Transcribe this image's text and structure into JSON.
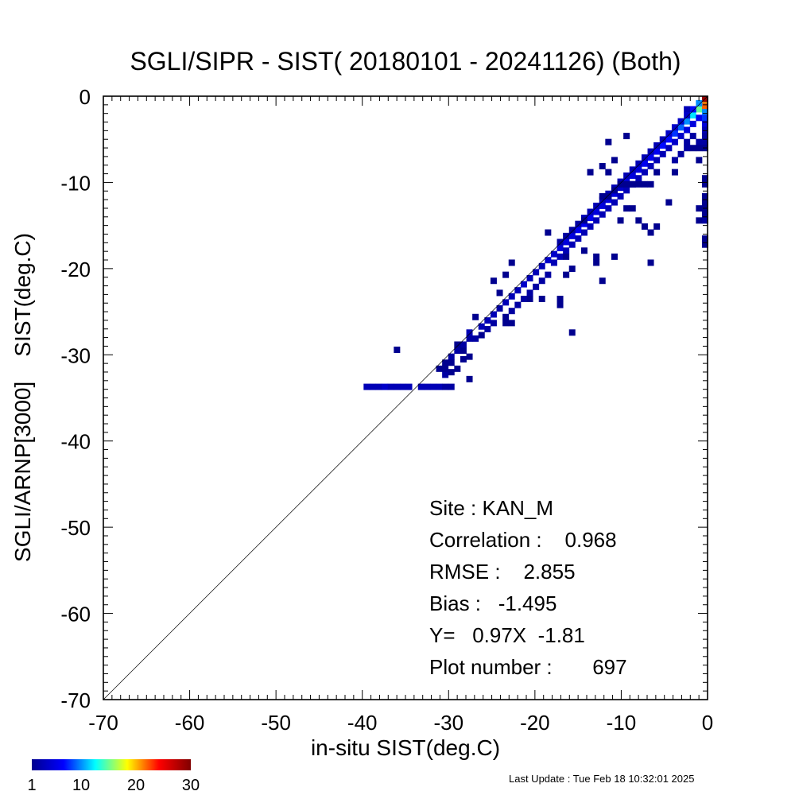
{
  "chart_data": {
    "type": "heatmap",
    "title": "SGLI/SIPR - SIST( 20180101 - 20241126) (Both)",
    "xlabel": "in-situ SIST(deg.C)",
    "ylabel": "SGLI/ARNP[3000]    SIST(deg.C)",
    "xlim": [
      -70,
      0
    ],
    "ylim": [
      -70,
      0
    ],
    "x_ticks": [
      -70,
      -60,
      -50,
      -40,
      -30,
      -20,
      -10,
      0
    ],
    "y_ticks": [
      0,
      -10,
      -20,
      -30,
      -40,
      -50,
      -60,
      -70
    ],
    "x_tick_labels": [
      "-70",
      "-60",
      "-50",
      "-40",
      "-30",
      "-20",
      "-10",
      "0"
    ],
    "y_tick_labels": [
      "0",
      "-10",
      "-20",
      "-30",
      "-40",
      "-50",
      "-60",
      "-70"
    ],
    "reference_line": "y = x",
    "grid": false,
    "bin_size": 0.7,
    "colorbar": {
      "min": 1,
      "max": 30,
      "ticks": [
        "1",
        "10",
        "20",
        "30"
      ],
      "colors": [
        "#00008f",
        "#0000ff",
        "#00ffff",
        "#ffff00",
        "#ff0000",
        "#800000"
      ]
    },
    "cells": [
      [
        -39.5,
        -33.7,
        3
      ],
      [
        -38.8,
        -33.7,
        3
      ],
      [
        -38.1,
        -33.7,
        3
      ],
      [
        -37.4,
        -33.7,
        4
      ],
      [
        -36.7,
        -33.7,
        3
      ],
      [
        -36.0,
        -33.7,
        3
      ],
      [
        -35.3,
        -33.7,
        3
      ],
      [
        -34.6,
        -33.7,
        3
      ],
      [
        -33.2,
        -33.7,
        3
      ],
      [
        -32.5,
        -33.7,
        3
      ],
      [
        -31.8,
        -33.7,
        3
      ],
      [
        -31.1,
        -33.7,
        3
      ],
      [
        -30.4,
        -33.7,
        2
      ],
      [
        -29.7,
        -33.7,
        2
      ],
      [
        -36.0,
        -29.4,
        1
      ],
      [
        -31.1,
        -31.6,
        1
      ],
      [
        -30.4,
        -32.3,
        2
      ],
      [
        -29.7,
        -32.0,
        1
      ],
      [
        -30.4,
        -30.9,
        1
      ],
      [
        -29.0,
        -31.6,
        1
      ],
      [
        -28.3,
        -30.5,
        1
      ],
      [
        -27.6,
        -32.8,
        1
      ],
      [
        -29.7,
        -30.2,
        2
      ],
      [
        -29.0,
        -29.5,
        2
      ],
      [
        -28.3,
        -28.8,
        2
      ],
      [
        -27.6,
        -28.1,
        2
      ],
      [
        -27.6,
        -27.4,
        3
      ],
      [
        -26.9,
        -28.1,
        2
      ],
      [
        -26.2,
        -26.7,
        3
      ],
      [
        -25.5,
        -26.0,
        3
      ],
      [
        -24.8,
        -25.3,
        3
      ],
      [
        -24.1,
        -24.6,
        2
      ],
      [
        -23.4,
        -23.9,
        3
      ],
      [
        -22.7,
        -23.2,
        3
      ],
      [
        -22.0,
        -22.5,
        3
      ],
      [
        -21.3,
        -21.8,
        4
      ],
      [
        -20.6,
        -21.1,
        3
      ],
      [
        -19.9,
        -20.4,
        3
      ],
      [
        -19.2,
        -19.7,
        3
      ],
      [
        -18.5,
        -19.0,
        4
      ],
      [
        -17.8,
        -18.3,
        4
      ],
      [
        -17.1,
        -17.6,
        5
      ],
      [
        -16.4,
        -16.9,
        5
      ],
      [
        -15.7,
        -16.2,
        5
      ],
      [
        -15.0,
        -15.5,
        6
      ],
      [
        -14.3,
        -14.8,
        6
      ],
      [
        -13.6,
        -14.1,
        6
      ],
      [
        -12.9,
        -13.4,
        5
      ],
      [
        -12.2,
        -12.7,
        5
      ],
      [
        -11.5,
        -12.0,
        5
      ],
      [
        -10.8,
        -11.3,
        5
      ],
      [
        -10.1,
        -10.6,
        4
      ],
      [
        -9.4,
        -9.9,
        5
      ],
      [
        -8.7,
        -9.2,
        5
      ],
      [
        -8.0,
        -8.5,
        5
      ],
      [
        -7.3,
        -7.8,
        6
      ],
      [
        -6.6,
        -7.1,
        6
      ],
      [
        -5.9,
        -6.4,
        6
      ],
      [
        -5.2,
        -5.7,
        7
      ],
      [
        -4.5,
        -5.0,
        7
      ],
      [
        -3.8,
        -4.3,
        8
      ],
      [
        -3.1,
        -3.6,
        9
      ],
      [
        -2.4,
        -2.9,
        10
      ],
      [
        -1.7,
        -2.2,
        12
      ],
      [
        -1.0,
        -1.5,
        15
      ],
      [
        -0.3,
        -0.8,
        18
      ],
      [
        -26.2,
        -27.7,
        1
      ],
      [
        -25.5,
        -27.0,
        2
      ],
      [
        -24.8,
        -26.3,
        2
      ],
      [
        -23.4,
        -25.6,
        1
      ],
      [
        -22.7,
        -24.9,
        2
      ],
      [
        -22.0,
        -24.2,
        2
      ],
      [
        -21.3,
        -23.5,
        2
      ],
      [
        -20.6,
        -22.8,
        2
      ],
      [
        -19.9,
        -22.1,
        2
      ],
      [
        -19.2,
        -21.4,
        2
      ],
      [
        -18.5,
        -20.7,
        2
      ],
      [
        -17.8,
        -19.3,
        3
      ],
      [
        -17.1,
        -18.6,
        3
      ],
      [
        -16.4,
        -17.9,
        3
      ],
      [
        -15.7,
        -17.2,
        3
      ],
      [
        -15.0,
        -16.5,
        3
      ],
      [
        -14.3,
        -15.8,
        3
      ],
      [
        -13.6,
        -15.1,
        3
      ],
      [
        -12.9,
        -14.4,
        3
      ],
      [
        -12.2,
        -13.7,
        3
      ],
      [
        -11.5,
        -13.0,
        3
      ],
      [
        -10.8,
        -12.3,
        3
      ],
      [
        -10.1,
        -11.6,
        3
      ],
      [
        -9.4,
        -10.9,
        3
      ],
      [
        -8.7,
        -10.2,
        3
      ],
      [
        -8.0,
        -9.5,
        3
      ],
      [
        -7.3,
        -8.8,
        3
      ],
      [
        -6.6,
        -8.1,
        3
      ],
      [
        -5.9,
        -7.4,
        3
      ],
      [
        -5.2,
        -6.7,
        3
      ],
      [
        -4.5,
        -6.0,
        3
      ],
      [
        -3.8,
        -5.3,
        4
      ],
      [
        -3.1,
        -4.6,
        4
      ],
      [
        -2.4,
        -3.9,
        5
      ],
      [
        -1.7,
        -3.2,
        5
      ],
      [
        -1.0,
        -2.5,
        6
      ],
      [
        -0.3,
        -1.8,
        10
      ],
      [
        -0.3,
        -0.3,
        29
      ],
      [
        -0.3,
        -1.1,
        22
      ],
      [
        -1.0,
        -0.8,
        10
      ],
      [
        -1.7,
        -1.5,
        7
      ],
      [
        -2.4,
        -1.5,
        3
      ],
      [
        -2.4,
        -2.2,
        4
      ],
      [
        -3.1,
        -2.9,
        4
      ],
      [
        -3.8,
        -3.6,
        4
      ],
      [
        -4.5,
        -4.3,
        4
      ],
      [
        -5.2,
        -5.0,
        3
      ],
      [
        -5.9,
        -5.7,
        3
      ],
      [
        -6.6,
        -6.4,
        3
      ],
      [
        -7.3,
        -7.1,
        3
      ],
      [
        -8.0,
        -7.8,
        3
      ],
      [
        -8.7,
        -8.5,
        3
      ],
      [
        -9.4,
        -9.2,
        3
      ],
      [
        -10.1,
        -9.9,
        3
      ],
      [
        -10.8,
        -10.6,
        3
      ],
      [
        -11.5,
        -11.3,
        3
      ],
      [
        -12.2,
        -12.0,
        3
      ],
      [
        -12.9,
        -12.7,
        3
      ],
      [
        -13.6,
        -13.4,
        3
      ],
      [
        -14.3,
        -14.1,
        3
      ],
      [
        -15.0,
        -14.8,
        2
      ],
      [
        -15.7,
        -15.5,
        2
      ],
      [
        -16.4,
        -16.2,
        2
      ],
      [
        -17.1,
        -16.9,
        2
      ],
      [
        -0.3,
        -2.5,
        8
      ],
      [
        -0.3,
        -3.2,
        5
      ],
      [
        -0.3,
        -3.9,
        3
      ],
      [
        -0.3,
        -4.6,
        2
      ],
      [
        -0.3,
        -5.3,
        2
      ],
      [
        -0.3,
        -6.0,
        1
      ],
      [
        -1.0,
        -5.3,
        2
      ],
      [
        -1.0,
        -6.0,
        1
      ],
      [
        -1.7,
        -4.6,
        2
      ],
      [
        -1.7,
        -6.0,
        1
      ],
      [
        -2.4,
        -5.3,
        2
      ],
      [
        -2.4,
        -6.0,
        2
      ],
      [
        -3.1,
        -6.7,
        2
      ],
      [
        -3.8,
        -7.4,
        2
      ],
      [
        -0.3,
        -9.5,
        1
      ],
      [
        -0.3,
        -10.2,
        1
      ],
      [
        -0.3,
        -11.6,
        1
      ],
      [
        -0.3,
        -12.3,
        1
      ],
      [
        -0.3,
        -13.0,
        1
      ],
      [
        -0.3,
        -13.7,
        1
      ],
      [
        -0.3,
        -14.4,
        2
      ],
      [
        -1.0,
        -14.4,
        1
      ],
      [
        -0.3,
        -16.5,
        1
      ],
      [
        -0.3,
        -17.2,
        1
      ],
      [
        -1.0,
        -13.0,
        1
      ],
      [
        -1.0,
        -7.4,
        1
      ],
      [
        -3.8,
        -8.8,
        1
      ],
      [
        -5.9,
        -8.8,
        1
      ],
      [
        -6.6,
        -10.2,
        1
      ],
      [
        -7.3,
        -10.2,
        1
      ],
      [
        -8.0,
        -10.2,
        1
      ],
      [
        -8.7,
        -10.2,
        1
      ],
      [
        -9.4,
        -10.2,
        1
      ],
      [
        -10.1,
        -10.2,
        1
      ],
      [
        -10.8,
        -10.9,
        1
      ],
      [
        -11.5,
        -11.6,
        1
      ],
      [
        -12.2,
        -11.6,
        1
      ],
      [
        -9.4,
        -13.0,
        1
      ],
      [
        -8.7,
        -13.0,
        1
      ],
      [
        -8.0,
        -14.4,
        1
      ],
      [
        -7.3,
        -15.1,
        1
      ],
      [
        -6.6,
        -15.8,
        1
      ],
      [
        -5.9,
        -15.1,
        1
      ],
      [
        -10.1,
        -14.4,
        1
      ],
      [
        -4.5,
        -12.3,
        1
      ],
      [
        -9.4,
        -4.6,
        1
      ],
      [
        -11.5,
        -5.3,
        1
      ],
      [
        -12.2,
        -8.1,
        1
      ],
      [
        -13.6,
        -8.8,
        1
      ],
      [
        -11.5,
        -8.8,
        1
      ],
      [
        -10.8,
        -7.4,
        1
      ],
      [
        -14.3,
        -14.4,
        1
      ],
      [
        -16.4,
        -18.6,
        1
      ],
      [
        -14.3,
        -17.9,
        1
      ],
      [
        -12.9,
        -18.6,
        1
      ],
      [
        -12.9,
        -19.3,
        1
      ],
      [
        -10.8,
        -18.6,
        1
      ],
      [
        -15.7,
        -20.0,
        1
      ],
      [
        -16.4,
        -20.7,
        1
      ],
      [
        -12.2,
        -21.4,
        1
      ],
      [
        -6.6,
        -19.3,
        1
      ],
      [
        -18.5,
        -15.8,
        1
      ],
      [
        -22.7,
        -19.3,
        1
      ],
      [
        -23.4,
        -20.7,
        1
      ],
      [
        -24.1,
        -22.8,
        1
      ],
      [
        -24.8,
        -21.4,
        1
      ],
      [
        -20.6,
        -23.5,
        1
      ],
      [
        -19.2,
        -23.5,
        1
      ],
      [
        -17.1,
        -23.5,
        1
      ],
      [
        -17.1,
        -24.2,
        1
      ],
      [
        -22.7,
        -26.3,
        1
      ],
      [
        -23.4,
        -26.3,
        1
      ],
      [
        -26.9,
        -25.6,
        1
      ],
      [
        -15.7,
        -27.4,
        1
      ],
      [
        -28.3,
        -29.5,
        1
      ],
      [
        -29.0,
        -28.8,
        1
      ],
      [
        -27.6,
        -30.2,
        1
      ],
      [
        -29.7,
        -30.9,
        1
      ],
      [
        -30.4,
        -31.6,
        1
      ]
    ],
    "annotations": {
      "site": "Site : KAN_M",
      "correlation": "Correlation :    0.968",
      "rmse": "RMSE :    2.855",
      "bias": "Bias :   -1.495",
      "fit": "Y=   0.97X  -1.81",
      "plot_number": "Plot number :       697"
    }
  },
  "footer": {
    "last_update": "Last Update : Tue Feb 18 10:32:01 2025"
  }
}
